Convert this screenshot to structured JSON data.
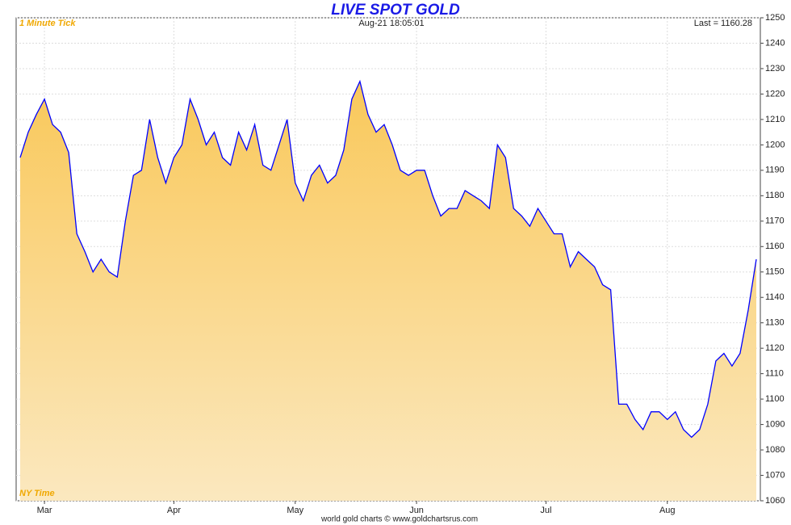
{
  "chart_data": {
    "type": "area",
    "title": "LIVE SPOT GOLD",
    "left_label": "1 Minute Tick",
    "timestamp": "Aug-21  18:05:01",
    "last_price": "Last = 1160.28",
    "bottom_left_label": "NY Time",
    "footer": "world gold charts © www.goldchartsrus.com",
    "color": "#0000ff",
    "fill_top": "#f9c85a",
    "fill_bottom": "#fbe8bf",
    "grid": true,
    "ylim": [
      1060,
      1250
    ],
    "yticks": [
      1060,
      1070,
      1080,
      1090,
      1100,
      1110,
      1120,
      1130,
      1140,
      1150,
      1160,
      1170,
      1180,
      1190,
      1200,
      1210,
      1220,
      1230,
      1240,
      1250
    ],
    "categories": [
      null,
      null,
      null,
      "Mar",
      null,
      null,
      null,
      null,
      null,
      null,
      null,
      null,
      null,
      null,
      null,
      null,
      null,
      null,
      null,
      "Apr",
      null,
      null,
      null,
      null,
      null,
      null,
      null,
      null,
      null,
      null,
      null,
      null,
      null,
      null,
      "May",
      null,
      null,
      null,
      null,
      null,
      null,
      null,
      null,
      null,
      null,
      null,
      null,
      null,
      null,
      "Jun",
      null,
      null,
      null,
      null,
      null,
      null,
      null,
      null,
      null,
      null,
      null,
      null,
      null,
      null,
      null,
      "Jul",
      null,
      null,
      null,
      null,
      null,
      null,
      null,
      null,
      null,
      null,
      null,
      null,
      null,
      null,
      "Aug",
      null,
      null,
      null,
      null,
      null,
      null,
      null,
      null,
      null,
      null,
      null
    ],
    "values": [
      1195,
      1205,
      1212,
      1218,
      1208,
      1205,
      1197,
      1165,
      1158,
      1150,
      1155,
      1150,
      1148,
      1170,
      1188,
      1190,
      1210,
      1195,
      1185,
      1195,
      1200,
      1218,
      1210,
      1200,
      1205,
      1195,
      1192,
      1205,
      1198,
      1208,
      1192,
      1190,
      1200,
      1210,
      1185,
      1178,
      1188,
      1192,
      1185,
      1188,
      1198,
      1218,
      1225,
      1212,
      1205,
      1208,
      1200,
      1190,
      1188,
      1190,
      1190,
      1180,
      1172,
      1175,
      1175,
      1182,
      1180,
      1178,
      1175,
      1200,
      1195,
      1175,
      1172,
      1168,
      1175,
      1170,
      1165,
      1165,
      1152,
      1158,
      1155,
      1152,
      1145,
      1143,
      1098,
      1098,
      1092,
      1088,
      1095,
      1095,
      1092,
      1095,
      1088,
      1085,
      1088,
      1098,
      1115,
      1118,
      1113,
      1118,
      1135,
      1155
    ]
  }
}
